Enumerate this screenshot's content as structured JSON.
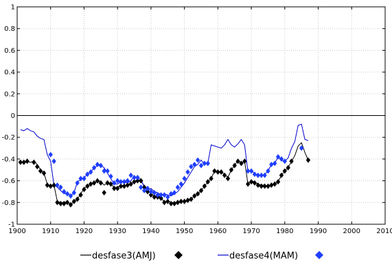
{
  "chart_data": {
    "type": "line",
    "title": "",
    "xlabel": "",
    "ylabel": "",
    "xlim": [
      1900,
      2010
    ],
    "ylim": [
      -1,
      1
    ],
    "grid": true,
    "legend_position": "bottom",
    "xticks": [
      1900,
      1910,
      1920,
      1930,
      1940,
      1950,
      1960,
      1970,
      1980,
      1990,
      2000,
      2010
    ],
    "yticks": [
      -1,
      -0.8,
      -0.6,
      -0.4,
      -0.2,
      0,
      0.2,
      0.4,
      0.6,
      0.8,
      1
    ],
    "xtick_labels": [
      "1900",
      "1910",
      "1920",
      "1930",
      "1940",
      "1950",
      "1960",
      "1970",
      "1980",
      "1990",
      "2000",
      "2010"
    ],
    "ytick_labels": [
      "-1",
      "-0.8",
      "-0.6",
      "-0.4",
      "-0.2",
      "0",
      "0.2",
      "0.4",
      "0.6",
      "0.8",
      "1"
    ],
    "zero_line": 0,
    "series": [
      {
        "name": "desfase3(AMJ)",
        "color": "#000000",
        "line_x": [
          1901,
          1902,
          1903,
          1904,
          1905,
          1906,
          1907,
          1908,
          1909,
          1910,
          1911,
          1912,
          1913,
          1914,
          1915,
          1916,
          1917,
          1918,
          1919,
          1920,
          1921,
          1922,
          1923,
          1924,
          1925,
          1926,
          1927,
          1928,
          1929,
          1930,
          1931,
          1932,
          1933,
          1934,
          1935,
          1936,
          1937,
          1938,
          1939,
          1940,
          1941,
          1942,
          1943,
          1944,
          1945,
          1946,
          1947,
          1948,
          1949,
          1950,
          1951,
          1952,
          1953,
          1954,
          1955,
          1956,
          1957,
          1958,
          1959,
          1960,
          1961,
          1962,
          1963,
          1964,
          1965,
          1966,
          1967,
          1968,
          1969,
          1970,
          1971,
          1972,
          1973,
          1974,
          1975,
          1976,
          1977,
          1978,
          1979,
          1980,
          1981,
          1982,
          1983,
          1984,
          1985,
          1986,
          1987
        ],
        "line_y": [
          -0.44,
          -0.43,
          -0.42,
          -0.43,
          -0.42,
          -0.45,
          -0.5,
          -0.53,
          -0.63,
          -0.65,
          -0.64,
          -0.79,
          -0.8,
          -0.8,
          -0.79,
          -0.82,
          -0.79,
          -0.77,
          -0.72,
          -0.67,
          -0.65,
          -0.63,
          -0.62,
          -0.6,
          -0.61,
          -0.64,
          -0.62,
          -0.63,
          -0.66,
          -0.66,
          -0.64,
          -0.65,
          -0.64,
          -0.63,
          -0.61,
          -0.6,
          -0.6,
          -0.65,
          -0.69,
          -0.72,
          -0.74,
          -0.74,
          -0.75,
          -0.8,
          -0.79,
          -0.8,
          -0.8,
          -0.8,
          -0.79,
          -0.79,
          -0.78,
          -0.77,
          -0.74,
          -0.72,
          -0.69,
          -0.65,
          -0.61,
          -0.58,
          -0.51,
          -0.52,
          -0.52,
          -0.54,
          -0.57,
          -0.5,
          -0.46,
          -0.41,
          -0.44,
          -0.42,
          -0.63,
          -0.6,
          -0.61,
          -0.63,
          -0.64,
          -0.64,
          -0.65,
          -0.64,
          -0.63,
          -0.61,
          -0.55,
          -0.51,
          -0.48,
          -0.42,
          -0.37,
          -0.28,
          -0.25,
          -0.34,
          -0.41
        ],
        "marker_x": [
          1901,
          1902,
          1903,
          1905,
          1906,
          1907,
          1908,
          1909,
          1910,
          1911,
          1912,
          1913,
          1914,
          1915,
          1916,
          1917,
          1918,
          1919,
          1920,
          1921,
          1922,
          1923,
          1924,
          1925,
          1926,
          1927,
          1928,
          1929,
          1930,
          1931,
          1932,
          1933,
          1934,
          1935,
          1936,
          1937,
          1938,
          1939,
          1940,
          1941,
          1942,
          1943,
          1944,
          1945,
          1946,
          1947,
          1948,
          1949,
          1950,
          1951,
          1952,
          1953,
          1954,
          1955,
          1956,
          1957,
          1958,
          1959,
          1960,
          1961,
          1962,
          1963,
          1964,
          1965,
          1966,
          1967,
          1968,
          1969,
          1970,
          1971,
          1972,
          1973,
          1974,
          1975,
          1976,
          1977,
          1978,
          1979,
          1980,
          1981,
          1982,
          1987
        ],
        "marker_y": [
          -0.43,
          -0.43,
          -0.42,
          -0.43,
          -0.47,
          -0.51,
          -0.53,
          -0.64,
          -0.65,
          -0.64,
          -0.8,
          -0.81,
          -0.81,
          -0.8,
          -0.82,
          -0.79,
          -0.77,
          -0.73,
          -0.68,
          -0.65,
          -0.63,
          -0.62,
          -0.6,
          -0.62,
          -0.71,
          -0.62,
          -0.63,
          -0.67,
          -0.67,
          -0.65,
          -0.65,
          -0.64,
          -0.63,
          -0.61,
          -0.6,
          -0.6,
          -0.66,
          -0.7,
          -0.73,
          -0.75,
          -0.75,
          -0.76,
          -0.8,
          -0.79,
          -0.81,
          -0.81,
          -0.8,
          -0.79,
          -0.79,
          -0.78,
          -0.77,
          -0.74,
          -0.72,
          -0.69,
          -0.65,
          -0.61,
          -0.58,
          -0.51,
          -0.52,
          -0.52,
          -0.55,
          -0.58,
          -0.5,
          -0.46,
          -0.42,
          -0.44,
          -0.42,
          -0.63,
          -0.61,
          -0.62,
          -0.64,
          -0.65,
          -0.65,
          -0.65,
          -0.64,
          -0.63,
          -0.61,
          -0.55,
          -0.51,
          -0.48,
          -0.42,
          -0.41
        ]
      },
      {
        "name": "desfase4(MAM)",
        "color": "#0000cc",
        "marker_color": "#1f3fff",
        "line_x": [
          1901,
          1902,
          1903,
          1904,
          1905,
          1906,
          1907,
          1908,
          1909,
          1910,
          1911,
          1912,
          1913,
          1914,
          1915,
          1916,
          1917,
          1918,
          1919,
          1920,
          1921,
          1922,
          1923,
          1924,
          1925,
          1926,
          1927,
          1928,
          1929,
          1930,
          1931,
          1932,
          1933,
          1934,
          1935,
          1936,
          1937,
          1938,
          1939,
          1940,
          1941,
          1942,
          1943,
          1944,
          1945,
          1946,
          1947,
          1948,
          1949,
          1950,
          1951,
          1952,
          1953,
          1954,
          1955,
          1956,
          1957,
          1958,
          1959,
          1960,
          1961,
          1962,
          1963,
          1964,
          1965,
          1966,
          1967,
          1968,
          1969,
          1970,
          1971,
          1972,
          1973,
          1974,
          1975,
          1976,
          1977,
          1978,
          1979,
          1980,
          1981,
          1982,
          1983,
          1984,
          1985,
          1986,
          1987
        ],
        "line_y": [
          -0.13,
          -0.14,
          -0.12,
          -0.14,
          -0.15,
          -0.19,
          -0.21,
          -0.22,
          -0.36,
          -0.42,
          -0.64,
          -0.66,
          -0.69,
          -0.72,
          -0.71,
          -0.74,
          -0.71,
          -0.61,
          -0.59,
          -0.57,
          -0.54,
          -0.52,
          -0.48,
          -0.46,
          -0.46,
          -0.48,
          -0.53,
          -0.58,
          -0.63,
          -0.63,
          -0.61,
          -0.61,
          -0.62,
          -0.6,
          -0.56,
          -0.57,
          -0.59,
          -0.66,
          -0.69,
          -0.67,
          -0.7,
          -0.71,
          -0.73,
          -0.72,
          -0.73,
          -0.74,
          -0.72,
          -0.7,
          -0.66,
          -0.62,
          -0.57,
          -0.52,
          -0.47,
          -0.45,
          -0.41,
          -0.45,
          -0.44,
          -0.27,
          -0.28,
          -0.29,
          -0.3,
          -0.27,
          -0.22,
          -0.27,
          -0.29,
          -0.26,
          -0.22,
          -0.27,
          -0.52,
          -0.5,
          -0.54,
          -0.55,
          -0.55,
          -0.54,
          -0.51,
          -0.45,
          -0.44,
          -0.38,
          -0.41,
          -0.42,
          -0.39,
          -0.3,
          -0.24,
          -0.09,
          -0.08,
          -0.22,
          -0.23
        ],
        "marker_x": [
          1910,
          1911,
          1912,
          1913,
          1914,
          1915,
          1916,
          1917,
          1918,
          1919,
          1920,
          1921,
          1922,
          1923,
          1924,
          1925,
          1926,
          1927,
          1928,
          1929,
          1930,
          1931,
          1932,
          1933,
          1934,
          1935,
          1936,
          1937,
          1938,
          1939,
          1940,
          1941,
          1942,
          1943,
          1944,
          1945,
          1946,
          1947,
          1948,
          1949,
          1950,
          1951,
          1952,
          1953,
          1954,
          1955,
          1956,
          1957,
          1969,
          1970,
          1971,
          1972,
          1973,
          1974,
          1975,
          1976,
          1977,
          1978,
          1979,
          1980,
          1985
        ],
        "marker_y": [
          -0.36,
          -0.42,
          -0.64,
          -0.66,
          -0.7,
          -0.72,
          -0.74,
          -0.71,
          -0.62,
          -0.58,
          -0.58,
          -0.54,
          -0.52,
          -0.48,
          -0.45,
          -0.46,
          -0.51,
          -0.51,
          -0.56,
          -0.62,
          -0.6,
          -0.61,
          -0.61,
          -0.6,
          -0.55,
          -0.57,
          -0.57,
          -0.66,
          -0.69,
          -0.67,
          -0.7,
          -0.71,
          -0.73,
          -0.73,
          -0.73,
          -0.75,
          -0.72,
          -0.71,
          -0.66,
          -0.63,
          -0.58,
          -0.52,
          -0.47,
          -0.45,
          -0.41,
          -0.46,
          -0.44,
          -0.44,
          -0.51,
          -0.51,
          -0.54,
          -0.55,
          -0.55,
          -0.55,
          -0.51,
          -0.45,
          -0.44,
          -0.38,
          -0.4,
          -0.42,
          -0.3
        ]
      }
    ]
  }
}
